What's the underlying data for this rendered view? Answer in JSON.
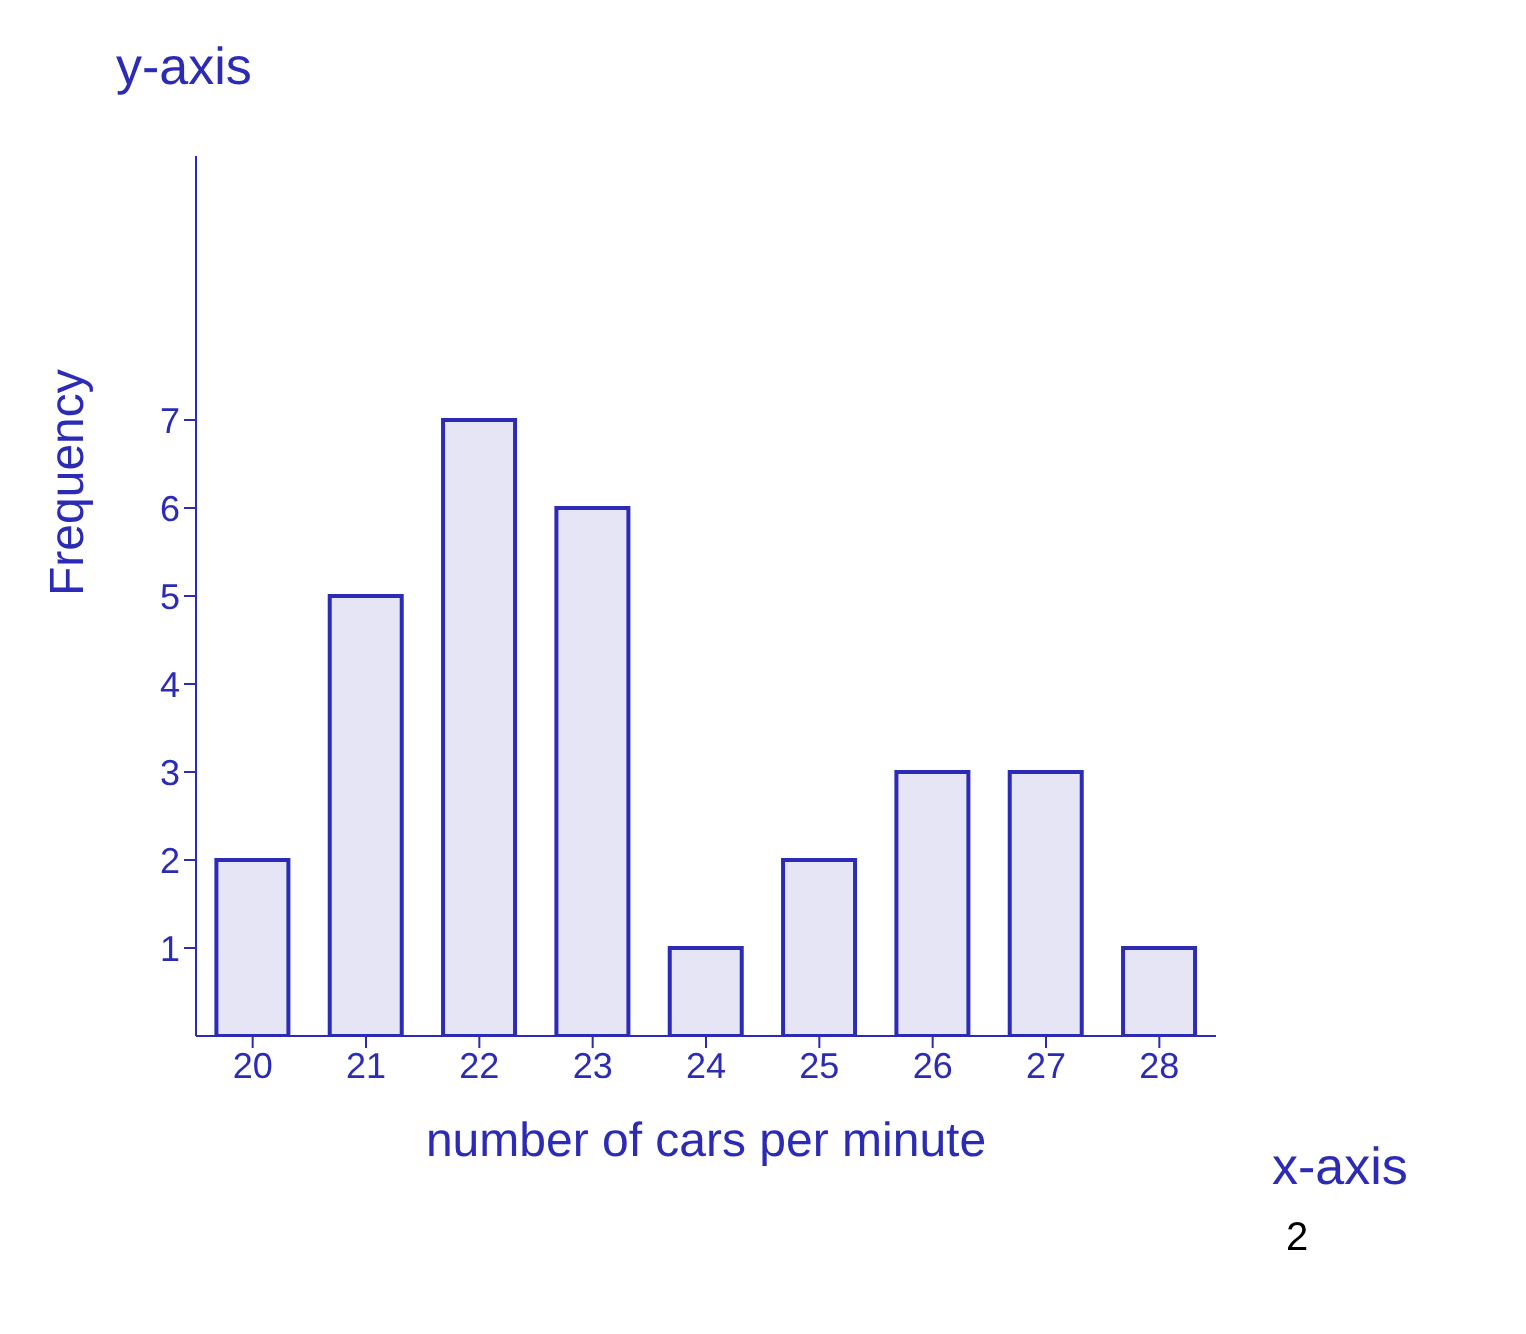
{
  "chart_data": {
    "type": "bar",
    "xlabel": "number of cars per minute",
    "ylabel": "Frequency",
    "categories": [
      "20",
      "21",
      "22",
      "23",
      "24",
      "25",
      "26",
      "27",
      "28"
    ],
    "values": [
      2,
      5,
      7,
      6,
      1,
      2,
      3,
      3,
      1
    ],
    "color": "#2b2bb5",
    "ylim": [
      0,
      10
    ],
    "yticks": [
      1,
      2,
      3,
      4,
      5,
      6,
      7
    ],
    "annotations": [
      "y-axis",
      "x-axis",
      "2"
    ]
  }
}
